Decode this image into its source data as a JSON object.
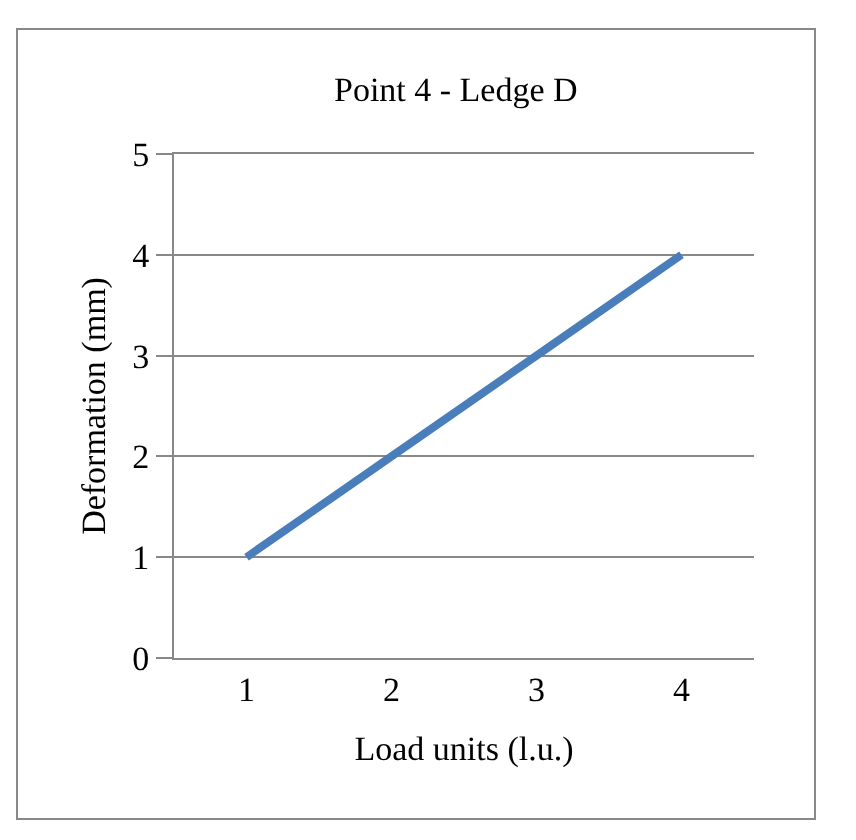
{
  "chart_data": {
    "type": "line",
    "title": "Point 4 - Ledge D",
    "xlabel": "Load units (l.u.)",
    "ylabel": "Deformation (mm)",
    "categories": [
      "1",
      "2",
      "3",
      "4"
    ],
    "series": [
      {
        "color": "#4a7ebb",
        "values": [
          1,
          2,
          3,
          4
        ]
      }
    ],
    "ylim": [
      0,
      5
    ],
    "yticks": [
      0,
      1,
      2,
      3,
      4,
      5
    ],
    "grid": "y",
    "marker": "none",
    "line_style": "solid"
  }
}
